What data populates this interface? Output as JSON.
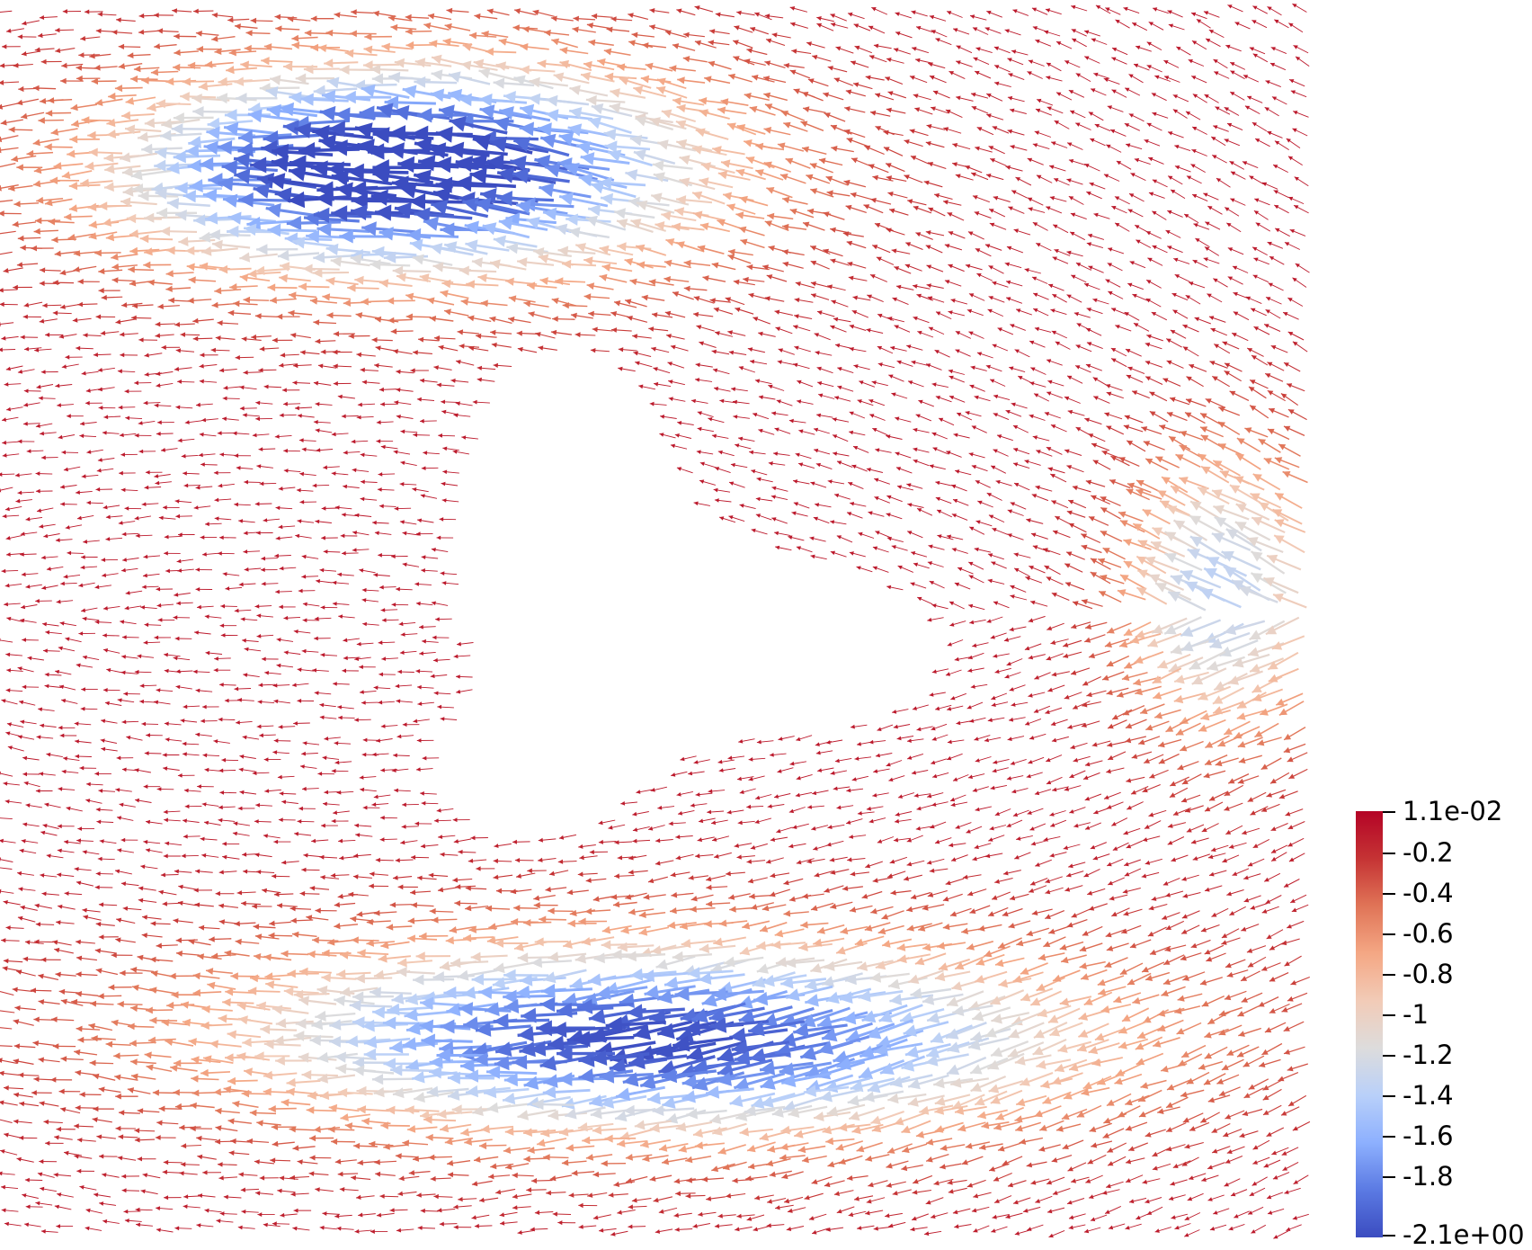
{
  "colors": {
    "background": "#ffffff",
    "colormap": [
      "#3b4cc0",
      "#5b7ae3",
      "#8db0fe",
      "#b9d0f9",
      "#dddcdc",
      "#f2cbb7",
      "#f4a784",
      "#e07457",
      "#c53334",
      "#b40426"
    ]
  },
  "colorbar": {
    "max_label": "1.1e-02",
    "min_label": "-2.1e+00",
    "range": [
      -2.1,
      0.011
    ],
    "ticks": [
      {
        "value": 0.011,
        "label": "1.1e-02"
      },
      {
        "value": -0.2,
        "label": "-0.2"
      },
      {
        "value": -0.4,
        "label": "-0.4"
      },
      {
        "value": -0.6,
        "label": "-0.6"
      },
      {
        "value": -0.8,
        "label": "-0.8"
      },
      {
        "value": -1.0,
        "label": "-1"
      },
      {
        "value": -1.2,
        "label": "-1.2"
      },
      {
        "value": -1.4,
        "label": "-1.4"
      },
      {
        "value": -1.6,
        "label": "-1.6"
      },
      {
        "value": -1.8,
        "label": "-1.8"
      },
      {
        "value": -2.1,
        "label": "-2.1e+00"
      }
    ]
  },
  "glyph_field": {
    "type": "arrow-glyphs",
    "direction": "leftward, circulating around a central void"
  }
}
